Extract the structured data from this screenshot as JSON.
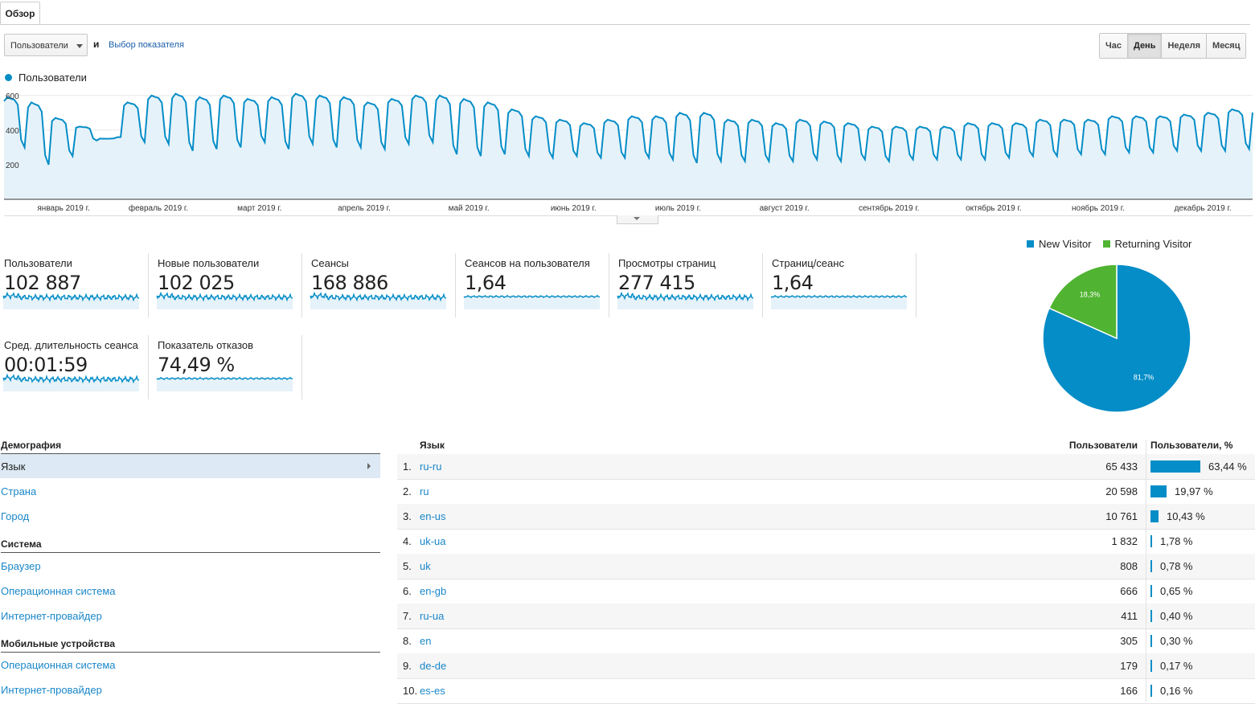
{
  "tab": {
    "label": "Обзор"
  },
  "controls": {
    "metric_select": "Пользователи",
    "and_label": "и",
    "pick_metric": "Выбор показателя",
    "periods": [
      {
        "label": "Час",
        "active": false
      },
      {
        "label": "День",
        "active": true
      },
      {
        "label": "Неделя",
        "active": false
      },
      {
        "label": "Месяц",
        "active": false
      }
    ]
  },
  "chart_data": {
    "type": "area",
    "series": [
      {
        "name": "Пользователи",
        "color": "#058dc7"
      }
    ],
    "y_ticks": [
      "600",
      "400",
      "200"
    ],
    "ylim": [
      0,
      650
    ],
    "x_ticks": [
      "январь 2019 г.",
      "февраль 2019 г.",
      "март 2019 г.",
      "апрель 2019 г.",
      "май 2019 г.",
      "июнь 2019 г.",
      "июль 2019 г.",
      "август 2019 г.",
      "сентябрь 2019 г.",
      "октябрь 2019 г.",
      "ноябрь 2019 г.",
      "декабрь 2019 г."
    ],
    "weekly_peaks": [
      590,
      560,
      470,
      420,
      350,
      560,
      600,
      610,
      590,
      600,
      580,
      590,
      610,
      600,
      590,
      560,
      580,
      600,
      600,
      580,
      560,
      520,
      480,
      460,
      440,
      460,
      480,
      480,
      500,
      500,
      460,
      460,
      440,
      460,
      450,
      440,
      420,
      420,
      420,
      420,
      440,
      440,
      440,
      460,
      460,
      460,
      480,
      480,
      480,
      490,
      500,
      520,
      520
    ],
    "weekly_troughs": [
      300,
      200,
      250,
      340,
      360,
      330,
      320,
      280,
      290,
      300,
      330,
      290,
      320,
      300,
      300,
      290,
      320,
      330,
      260,
      250,
      260,
      250,
      240,
      250,
      240,
      240,
      240,
      230,
      210,
      220,
      220,
      220,
      220,
      230,
      220,
      230,
      220,
      230,
      230,
      230,
      230,
      240,
      250,
      250,
      260,
      260,
      270,
      270,
      280,
      280,
      280,
      290,
      290
    ]
  },
  "metrics": [
    {
      "label": "Пользователи",
      "value": "102 887"
    },
    {
      "label": "Новые пользователи",
      "value": "102 025"
    },
    {
      "label": "Сеансы",
      "value": "168 886"
    },
    {
      "label": "Сеансов на пользователя",
      "value": "1,64"
    },
    {
      "label": "Просмотры страниц",
      "value": "277 415"
    },
    {
      "label": "Страниц/сеанс",
      "value": "1,64"
    },
    {
      "label": "Сред. длительность сеанса",
      "value": "00:01:59"
    },
    {
      "label": "Показатель отказов",
      "value": "74,49 %"
    }
  ],
  "pie": {
    "legend": [
      {
        "label": "New Visitor",
        "color": "#058dc7"
      },
      {
        "label": "Returning Visitor",
        "color": "#50b432"
      }
    ],
    "slices": [
      {
        "label": "81,7%",
        "value": 81.7,
        "color": "#058dc7"
      },
      {
        "label": "18,3%",
        "value": 18.3,
        "color": "#50b432"
      }
    ]
  },
  "demographics": {
    "sections": [
      {
        "title": "Демография",
        "items": [
          "Язык",
          "Страна",
          "Город"
        ]
      },
      {
        "title": "Система",
        "items": [
          "Браузер",
          "Операционная система",
          "Интернет-провайдер"
        ]
      },
      {
        "title": "Мобильные устройства",
        "items": [
          "Операционная система",
          "Интернет-провайдер"
        ]
      }
    ]
  },
  "table": {
    "headers": {
      "language": "Язык",
      "users": "Пользователи",
      "users_pct": "Пользователи, %"
    },
    "rows": [
      {
        "num": "1.",
        "lang": "ru-ru",
        "users": "65 433",
        "pct": "63,44 %",
        "share": 63.44
      },
      {
        "num": "2.",
        "lang": "ru",
        "users": "20 598",
        "pct": "19,97 %",
        "share": 19.97
      },
      {
        "num": "3.",
        "lang": "en-us",
        "users": "10 761",
        "pct": "10,43 %",
        "share": 10.43
      },
      {
        "num": "4.",
        "lang": "uk-ua",
        "users": "1 832",
        "pct": "1,78 %",
        "share": 1.78
      },
      {
        "num": "5.",
        "lang": "uk",
        "users": "808",
        "pct": "0,78 %",
        "share": 0.78
      },
      {
        "num": "6.",
        "lang": "en-gb",
        "users": "666",
        "pct": "0,65 %",
        "share": 0.65
      },
      {
        "num": "7.",
        "lang": "ru-ua",
        "users": "411",
        "pct": "0,40 %",
        "share": 0.4
      },
      {
        "num": "8.",
        "lang": "en",
        "users": "305",
        "pct": "0,30 %",
        "share": 0.3
      },
      {
        "num": "9.",
        "lang": "de-de",
        "users": "179",
        "pct": "0,17 %",
        "share": 0.17
      },
      {
        "num": "10.",
        "lang": "es-es",
        "users": "166",
        "pct": "0,16 %",
        "share": 0.16
      }
    ]
  }
}
